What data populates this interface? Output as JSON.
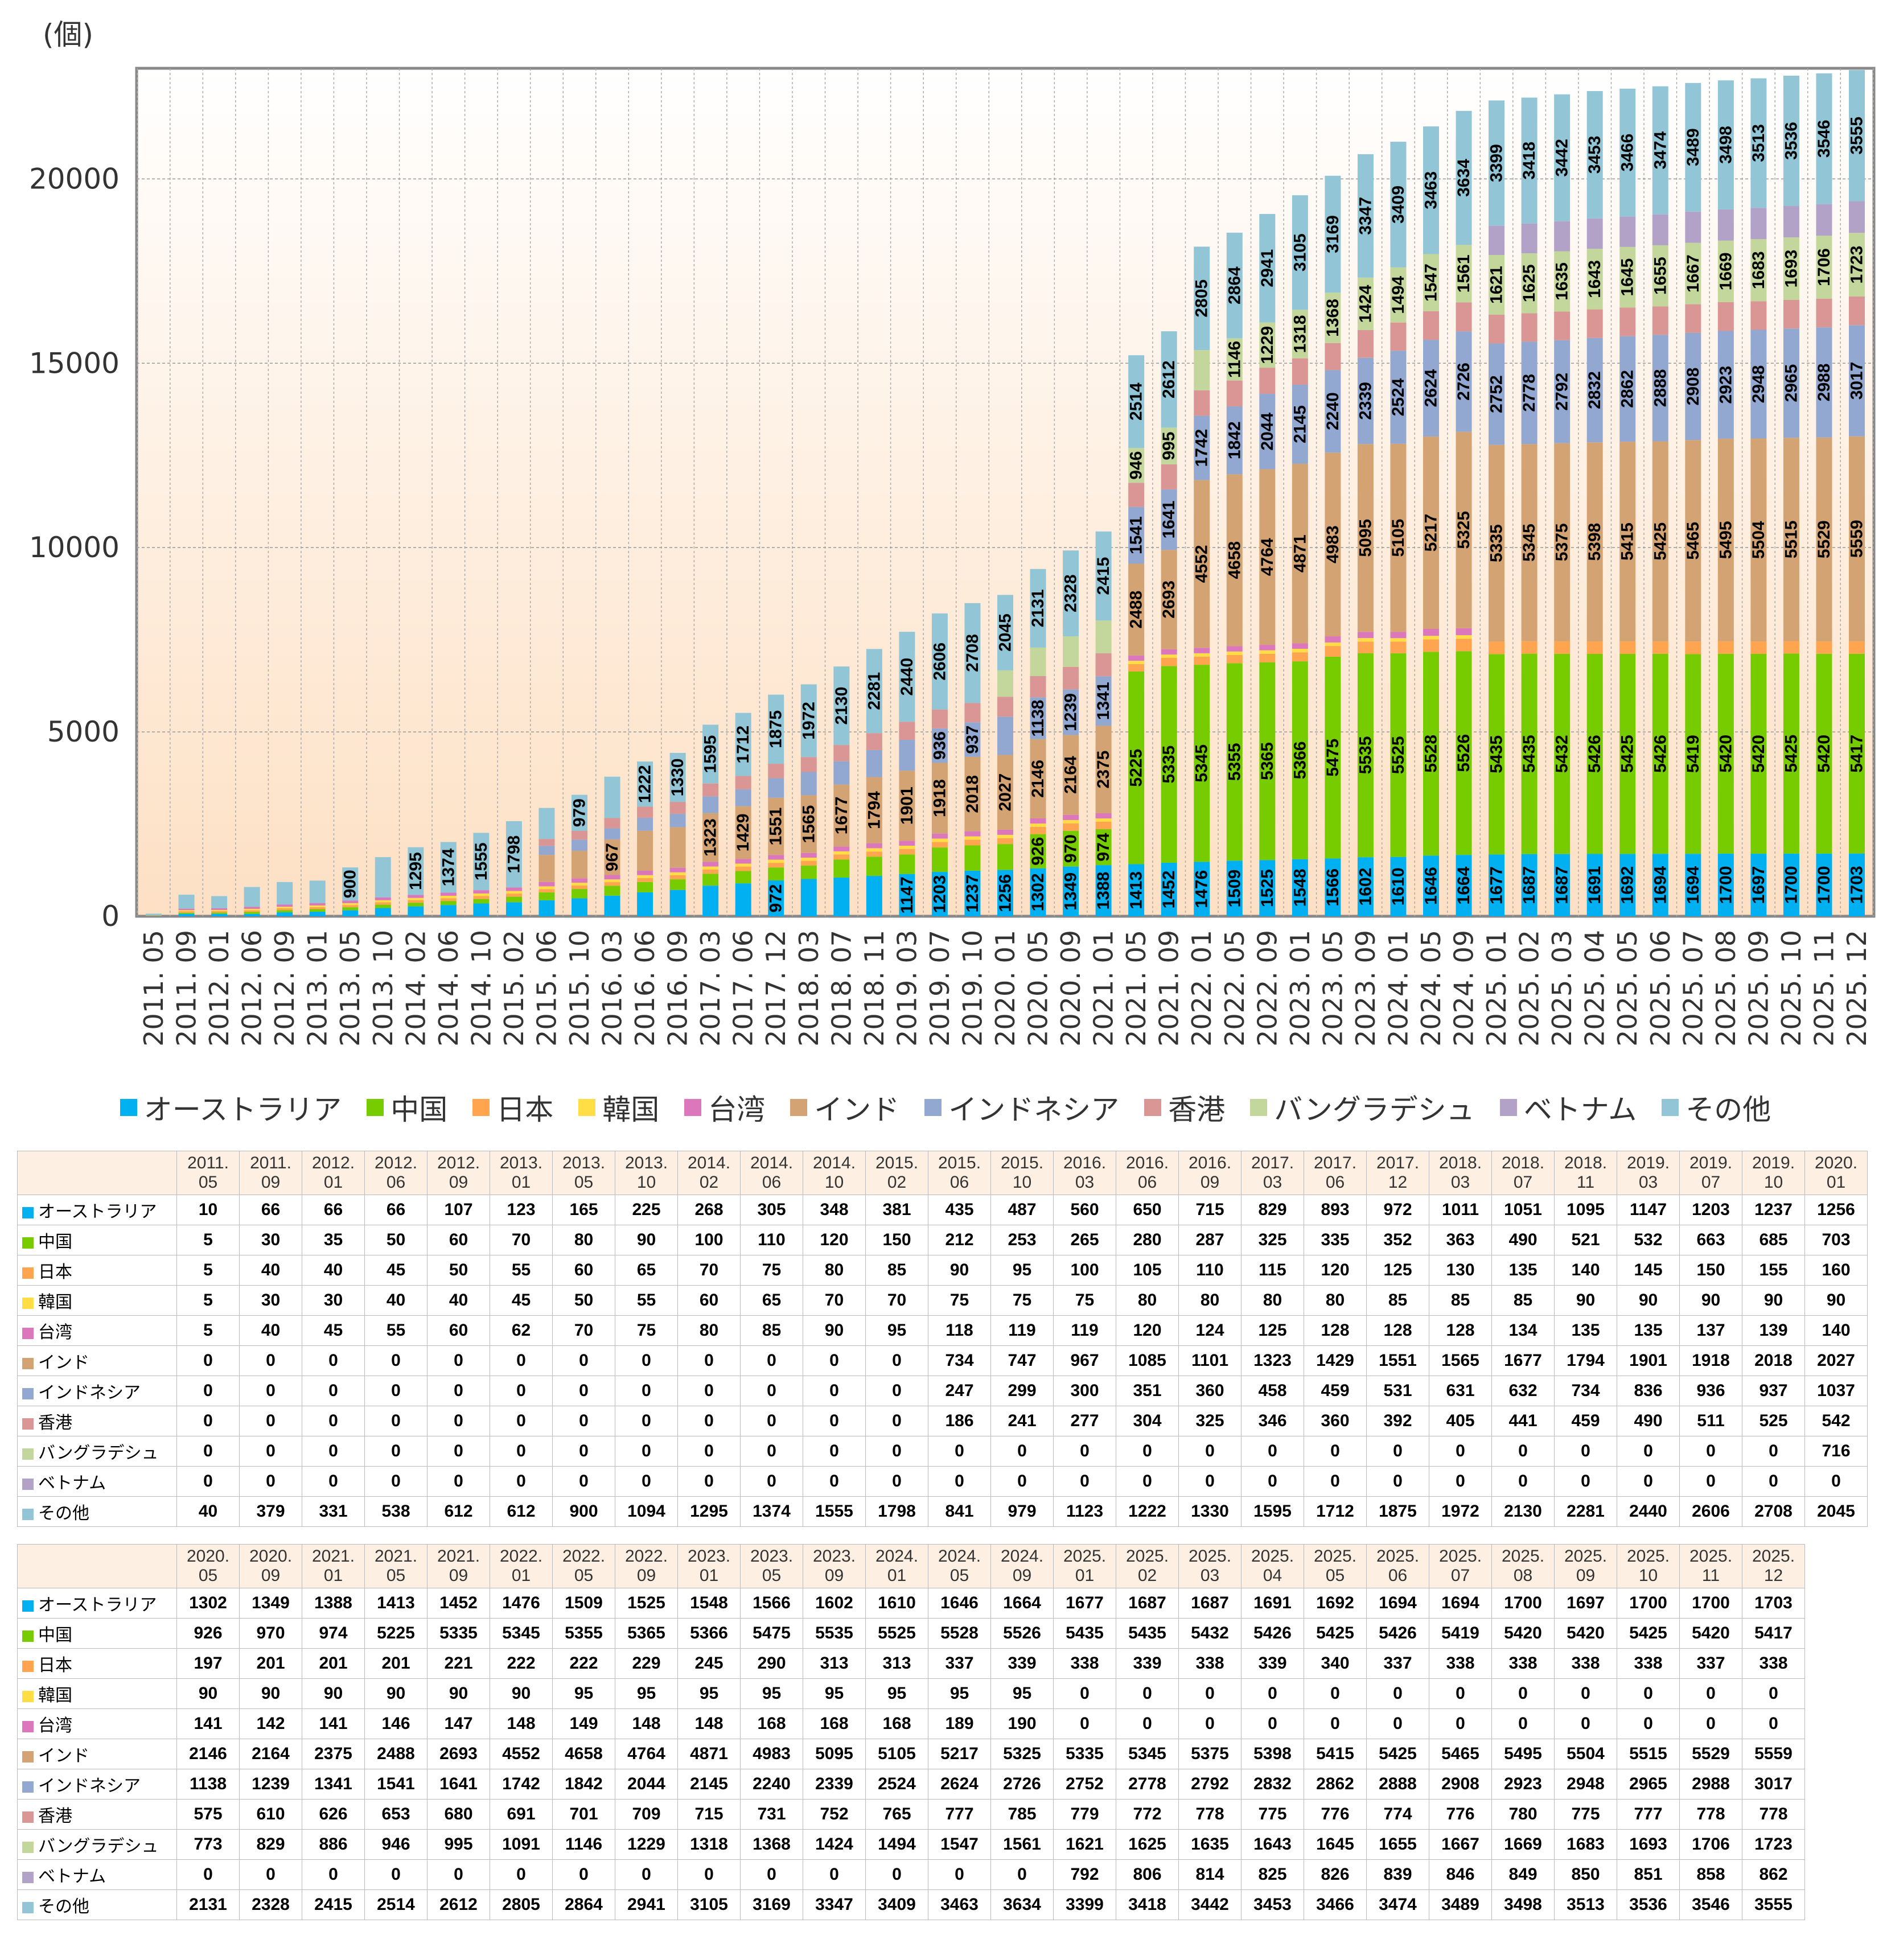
{
  "chart_data": {
    "type": "bar",
    "stacked": true,
    "title": "",
    "xlabel": "",
    "ylabel": "(個)",
    "ylim": [
      0,
      23000
    ],
    "yticks": [
      0,
      5000,
      10000,
      15000,
      20000
    ],
    "grid": true,
    "legend_position": "bottom",
    "categories": [
      "2011. 05",
      "2011. 09",
      "2012. 01",
      "2012. 06",
      "2012. 09",
      "2013. 01",
      "2013. 05",
      "2013. 10",
      "2014. 02",
      "2014. 06",
      "2014. 10",
      "2015. 02",
      "2015. 06",
      "2015. 10",
      "2016. 03",
      "2016. 06",
      "2016. 09",
      "2017. 03",
      "2017. 06",
      "2017. 12",
      "2018. 03",
      "2018. 07",
      "2018. 11",
      "2019. 03",
      "2019. 07",
      "2019. 10",
      "2020. 01",
      "2020. 05",
      "2020. 09",
      "2021. 01",
      "2021. 05",
      "2021. 09",
      "2022. 01",
      "2022. 05",
      "2022. 09",
      "2023. 01",
      "2023. 05",
      "2023. 09",
      "2024. 01",
      "2024. 05",
      "2024. 09",
      "2025. 01",
      "2025. 02",
      "2025. 03",
      "2025. 04",
      "2025. 05",
      "2025. 06",
      "2025. 07",
      "2025. 08",
      "2025. 09",
      "2025. 10",
      "2025. 11",
      "2025. 12"
    ],
    "series": [
      {
        "name": "オーストラリア",
        "color": "#00b0f0",
        "values": [
          10,
          66,
          66,
          66,
          107,
          123,
          165,
          225,
          268,
          305,
          348,
          381,
          435,
          487,
          560,
          650,
          715,
          829,
          893,
          972,
          1011,
          1051,
          1095,
          1147,
          1203,
          1237,
          1256,
          1302,
          1349,
          1388,
          1413,
          1452,
          1476,
          1509,
          1525,
          1548,
          1566,
          1602,
          1610,
          1646,
          1664,
          1677,
          1687,
          1687,
          1691,
          1692,
          1694,
          1694,
          1700,
          1697,
          1700,
          1700,
          1703
        ]
      },
      {
        "name": "中国",
        "color": "#77cc00",
        "values": [
          5,
          30,
          35,
          50,
          60,
          70,
          80,
          90,
          100,
          110,
          120,
          150,
          212,
          253,
          265,
          280,
          287,
          325,
          335,
          352,
          363,
          490,
          521,
          532,
          663,
          685,
          703,
          926,
          970,
          974,
          5225,
          5335,
          5345,
          5355,
          5365,
          5366,
          5475,
          5535,
          5525,
          5528,
          5526,
          5435,
          5435,
          5432,
          5426,
          5425,
          5426,
          5419,
          5420,
          5420,
          5425,
          5420,
          5417
        ]
      },
      {
        "name": "日本",
        "color": "#ffa54f",
        "values": [
          5,
          40,
          40,
          45,
          50,
          55,
          60,
          65,
          70,
          75,
          80,
          85,
          90,
          95,
          100,
          105,
          110,
          115,
          120,
          125,
          130,
          135,
          140,
          145,
          150,
          155,
          160,
          197,
          201,
          201,
          201,
          221,
          222,
          222,
          229,
          245,
          290,
          313,
          313,
          337,
          339,
          338,
          339,
          338,
          339,
          340,
          337,
          338,
          338,
          338,
          338,
          337,
          338
        ]
      },
      {
        "name": "韓国",
        "color": "#ffdd44",
        "values": [
          5,
          30,
          30,
          40,
          40,
          45,
          50,
          55,
          60,
          65,
          70,
          70,
          75,
          75,
          75,
          80,
          80,
          80,
          80,
          85,
          85,
          85,
          90,
          90,
          90,
          90,
          90,
          90,
          90,
          90,
          90,
          90,
          90,
          95,
          95,
          95,
          95,
          95,
          95,
          95,
          95,
          0,
          0,
          0,
          0,
          0,
          0,
          0,
          0,
          0,
          0,
          0,
          0
        ]
      },
      {
        "name": "台湾",
        "color": "#dd77bb",
        "values": [
          5,
          40,
          45,
          55,
          60,
          62,
          70,
          75,
          80,
          85,
          90,
          95,
          118,
          119,
          119,
          120,
          124,
          125,
          128,
          128,
          128,
          134,
          135,
          135,
          137,
          139,
          140,
          141,
          142,
          141,
          146,
          147,
          148,
          149,
          148,
          148,
          168,
          168,
          168,
          189,
          190,
          0,
          0,
          0,
          0,
          0,
          0,
          0,
          0,
          0,
          0,
          0,
          0
        ]
      },
      {
        "name": "インド",
        "color": "#d4a373",
        "values": [
          0,
          0,
          0,
          0,
          0,
          0,
          0,
          0,
          0,
          0,
          0,
          0,
          734,
          747,
          967,
          1085,
          1101,
          1323,
          1429,
          1551,
          1565,
          1677,
          1794,
          1901,
          1918,
          2018,
          2027,
          2146,
          2164,
          2375,
          2488,
          2693,
          4552,
          4658,
          4764,
          4871,
          4983,
          5095,
          5105,
          5217,
          5325,
          5335,
          5345,
          5375,
          5398,
          5415,
          5425,
          5465,
          5495,
          5504,
          5515,
          5529,
          5559
        ]
      },
      {
        "name": "インドネシア",
        "color": "#92a8d1",
        "values": [
          0,
          0,
          0,
          0,
          0,
          0,
          0,
          0,
          0,
          0,
          0,
          0,
          247,
          299,
          300,
          351,
          360,
          458,
          459,
          531,
          631,
          632,
          734,
          836,
          936,
          937,
          1037,
          1138,
          1239,
          1341,
          1541,
          1641,
          1742,
          1842,
          2044,
          2145,
          2240,
          2339,
          2524,
          2624,
          2726,
          2752,
          2778,
          2792,
          2832,
          2862,
          2888,
          2908,
          2923,
          2948,
          2965,
          2988,
          3017
        ]
      },
      {
        "name": "香港",
        "color": "#d99694",
        "values": [
          0,
          0,
          0,
          0,
          0,
          0,
          0,
          0,
          0,
          0,
          0,
          0,
          186,
          241,
          277,
          304,
          325,
          346,
          360,
          392,
          405,
          441,
          459,
          490,
          511,
          525,
          542,
          575,
          610,
          626,
          653,
          680,
          691,
          701,
          709,
          715,
          731,
          752,
          765,
          777,
          785,
          779,
          772,
          778,
          775,
          776,
          774,
          776,
          780,
          775,
          777,
          778,
          778
        ]
      },
      {
        "name": "バングラデシュ",
        "color": "#c3d69b",
        "values": [
          0,
          0,
          0,
          0,
          0,
          0,
          0,
          0,
          0,
          0,
          0,
          0,
          0,
          0,
          0,
          0,
          0,
          0,
          0,
          0,
          0,
          0,
          0,
          0,
          0,
          0,
          716,
          773,
          829,
          886,
          946,
          995,
          1091,
          1146,
          1229,
          1318,
          1368,
          1424,
          1494,
          1547,
          1561,
          1621,
          1625,
          1635,
          1643,
          1645,
          1655,
          1667,
          1669,
          1683,
          1693,
          1706,
          1723
        ]
      },
      {
        "name": "ベトナム",
        "color": "#b3a2c7",
        "values": [
          0,
          0,
          0,
          0,
          0,
          0,
          0,
          0,
          0,
          0,
          0,
          0,
          0,
          0,
          0,
          0,
          0,
          0,
          0,
          0,
          0,
          0,
          0,
          0,
          0,
          0,
          0,
          0,
          0,
          0,
          0,
          0,
          0,
          0,
          0,
          0,
          0,
          0,
          0,
          0,
          0,
          792,
          806,
          814,
          825,
          826,
          839,
          846,
          849,
          850,
          851,
          858,
          862
        ]
      },
      {
        "name": "その他",
        "color": "#92c5d6",
        "values": [
          40,
          379,
          331,
          538,
          612,
          612,
          900,
          1094,
          1295,
          1374,
          1555,
          1798,
          841,
          979,
          1123,
          1222,
          1330,
          1595,
          1712,
          1875,
          1972,
          2130,
          2281,
          2440,
          2606,
          2708,
          2045,
          2131,
          2328,
          2415,
          2514,
          2612,
          2805,
          2864,
          2941,
          3105,
          3169,
          3347,
          3409,
          3463,
          3634,
          3399,
          3418,
          3442,
          3453,
          3466,
          3474,
          3489,
          3498,
          3513,
          3536,
          3546,
          3555
        ]
      }
    ]
  }
}
